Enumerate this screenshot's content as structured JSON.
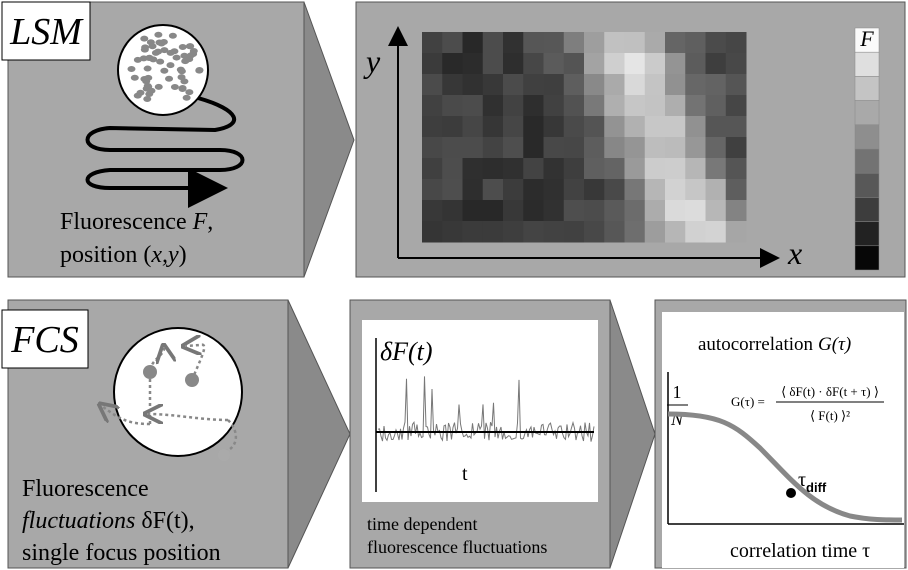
{
  "lsm": {
    "label": "LSM",
    "caption": {
      "line1": [
        "Fluorescence",
        "F",
        ","
      ],
      "line2": [
        "position (",
        "x,y",
        ")"
      ]
    },
    "y_axis": "y",
    "x_axis": "x",
    "colorbar_label": "F"
  },
  "fcs": {
    "label": "FCS",
    "caption": {
      "line1": "Fluorescence",
      "line2": [
        "fluctuations",
        "δF(t)",
        ","
      ],
      "line3": "single focus position"
    },
    "trace": {
      "label": "δF(t)",
      "x_axis": "t",
      "caption": [
        "time dependent",
        "fluorescence fluctuations"
      ]
    },
    "autocorrelation": {
      "title": [
        "autocorrelation",
        "G(τ)"
      ],
      "y_intercept": [
        "1",
        "N"
      ],
      "formula": {
        "lhs": "G(τ) =",
        "numerator": "⟨ δF(t) · δF(t + τ) ⟩",
        "denominator": "⟨ F(t) ⟩²"
      },
      "marker": [
        "τ",
        "diff"
      ],
      "x_axis": "correlation time τ"
    }
  }
}
